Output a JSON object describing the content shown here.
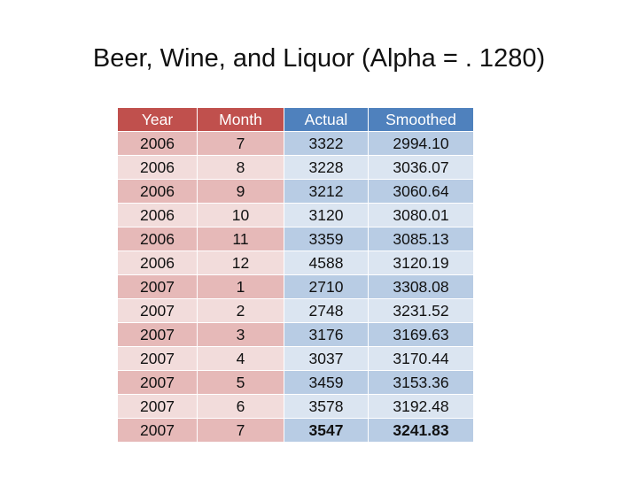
{
  "title": "Beer, Wine, and Liquor (Alpha = . 1280)",
  "table": {
    "headers": [
      "Year",
      "Month",
      "Actual",
      "Smoothed"
    ],
    "rows": [
      [
        "2006",
        "7",
        "3322",
        "2994.10"
      ],
      [
        "2006",
        "8",
        "3228",
        "3036.07"
      ],
      [
        "2006",
        "9",
        "3212",
        "3060.64"
      ],
      [
        "2006",
        "10",
        "3120",
        "3080.01"
      ],
      [
        "2006",
        "11",
        "3359",
        "3085.13"
      ],
      [
        "2006",
        "12",
        "4588",
        "3120.19"
      ],
      [
        "2007",
        "1",
        "2710",
        "3308.08"
      ],
      [
        "2007",
        "2",
        "2748",
        "3231.52"
      ],
      [
        "2007",
        "3",
        "3176",
        "3169.63"
      ],
      [
        "2007",
        "4",
        "3037",
        "3170.44"
      ],
      [
        "2007",
        "5",
        "3459",
        "3153.36"
      ],
      [
        "2007",
        "6",
        "3578",
        "3192.48"
      ],
      [
        "2007",
        "7",
        "3547",
        "3241.83"
      ]
    ]
  },
  "colors": {
    "header_red": "#c0504d",
    "header_blue": "#4f81bd",
    "row_red_dark": "#e6b9b8",
    "row_red_light": "#f2dcdb",
    "row_blue_dark": "#b8cce4",
    "row_blue_light": "#dbe5f1"
  }
}
